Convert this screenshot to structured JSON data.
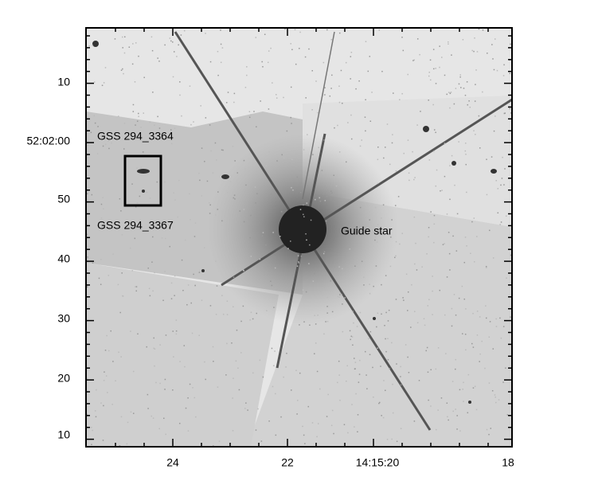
{
  "figure": {
    "y_tick_labels": [
      "10",
      "52:02:00",
      "50",
      "40",
      "30",
      "20",
      "10"
    ],
    "x_tick_labels": [
      "24",
      "22",
      "14:15:20",
      "18"
    ],
    "annotations": [
      "GSS 294_3364",
      "GSS 294_3367",
      "Guide star"
    ]
  }
}
